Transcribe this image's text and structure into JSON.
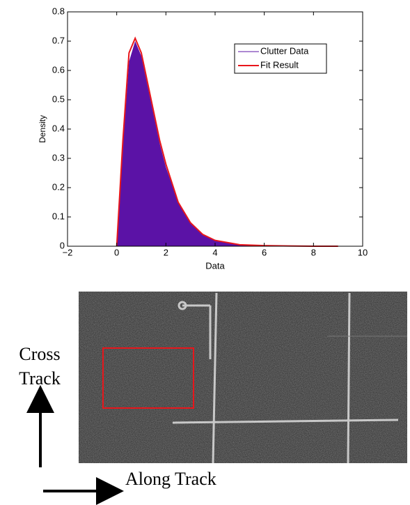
{
  "chart_data": {
    "type": "density",
    "xlabel": "Data",
    "ylabel": "Density",
    "x": [
      0,
      0.25,
      0.5,
      0.75,
      1,
      1.25,
      1.5,
      1.75,
      2,
      2.5,
      3,
      3.5,
      4,
      5,
      6,
      7,
      8,
      9
    ],
    "series": [
      {
        "name": "Clutter Data",
        "color": "#5b12a6",
        "style": "area",
        "values": [
          0,
          0.34,
          0.63,
          0.7,
          0.65,
          0.55,
          0.45,
          0.35,
          0.27,
          0.15,
          0.08,
          0.04,
          0.02,
          0.005,
          0.002,
          0.001,
          0,
          0
        ]
      },
      {
        "name": "Fit Result",
        "color": "#e8161b",
        "style": "line",
        "values": [
          0,
          0.36,
          0.66,
          0.71,
          0.66,
          0.56,
          0.46,
          0.36,
          0.28,
          0.15,
          0.08,
          0.04,
          0.02,
          0.005,
          0.002,
          0.001,
          0,
          0
        ]
      }
    ],
    "xlim": [
      -2,
      10
    ],
    "xticks": [
      {
        "value": -2,
        "label": "−2"
      },
      0,
      2,
      4,
      6,
      8,
      10
    ],
    "ylim": [
      0,
      0.8
    ],
    "yticks": [
      0,
      0.1,
      0.2,
      0.3,
      0.4,
      0.5,
      0.6,
      0.7,
      0.8
    ],
    "legend": "upper-right"
  },
  "figure": {
    "cross_track_label": [
      "Cross",
      "Track"
    ],
    "along_track_label": "Along Track"
  }
}
